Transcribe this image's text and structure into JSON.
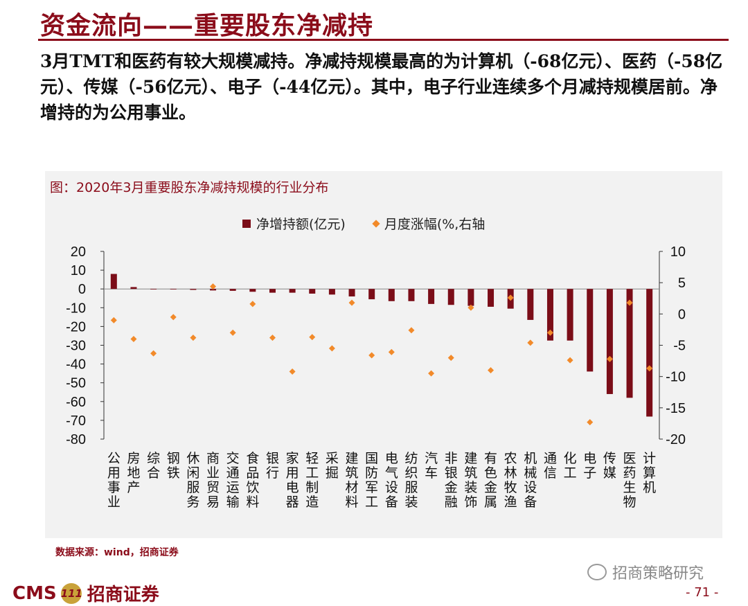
{
  "header": {
    "title": "资金流向——重要股东净减持",
    "summary": "3月TMT和医药有较大规模减持。净减持规模最高的为计算机（-68亿元）、医药（-58亿元）、传媒（-56亿元）、电子（-44亿元）。其中，电子行业连续多个月减持规模居前。净增持的为公用事业。"
  },
  "chart_data": {
    "type": "bar",
    "title": "图：2020年3月重要股东净减持规模的行业分布",
    "categories": [
      "公用事业",
      "房地产",
      "综合",
      "钢铁",
      "休闲服务",
      "商业贸易",
      "交通运输",
      "食品饮料",
      "银行",
      "家用电器",
      "轻工制造",
      "采掘",
      "建筑材料",
      "国防军工",
      "电气设备",
      "纺织服装",
      "汽车",
      "非银金融",
      "建筑装饰",
      "有色金属",
      "农林牧渔",
      "机械设备",
      "通信",
      "化工",
      "电子",
      "传媒",
      "医药生物",
      "计算机"
    ],
    "series": [
      {
        "name": "净增持额(亿元)",
        "kind": "bar",
        "axis": "left",
        "values": [
          8,
          1,
          0,
          0,
          -0.5,
          -0.8,
          -1,
          -1.5,
          -2,
          -2,
          -2.5,
          -3,
          -4,
          -5.5,
          -6.5,
          -6.5,
          -8,
          -8.5,
          -9,
          -9.5,
          -10.5,
          -16.5,
          -27.5,
          -27.5,
          -44,
          -56,
          -58,
          -68
        ]
      },
      {
        "name": "月度涨幅(%,右轴",
        "kind": "scatter",
        "axis": "right",
        "values": [
          -1,
          -4,
          -6.3,
          -0.5,
          -3.8,
          4.4,
          -3,
          1.6,
          -3.8,
          -9.2,
          -3.7,
          -5.5,
          1.8,
          -6.6,
          -6.1,
          -2.6,
          -9.5,
          -7,
          1,
          -9,
          2.6,
          -4.6,
          -3,
          -7.4,
          -17.3,
          -7.2,
          1.8,
          -8.7
        ]
      }
    ],
    "ylim_left": [
      -80,
      20
    ],
    "yticks_left": [
      20,
      10,
      0,
      -10,
      -20,
      -30,
      -40,
      -50,
      -60,
      -70,
      -80
    ],
    "ylim_right": [
      -20,
      10
    ],
    "yticks_right": [
      10,
      5,
      0,
      -5,
      -10,
      -15,
      -20
    ],
    "legend": "top-center",
    "grid": false,
    "colors": {
      "bar": "#7b0d18",
      "scatter": "#f28a2a"
    }
  },
  "source": "数据来源：wind，招商证券",
  "footer": {
    "logo_text": "CMS",
    "badge": "111",
    "brand": "招商证券",
    "watermark": "招商策略研究",
    "page": "- 71 -"
  }
}
